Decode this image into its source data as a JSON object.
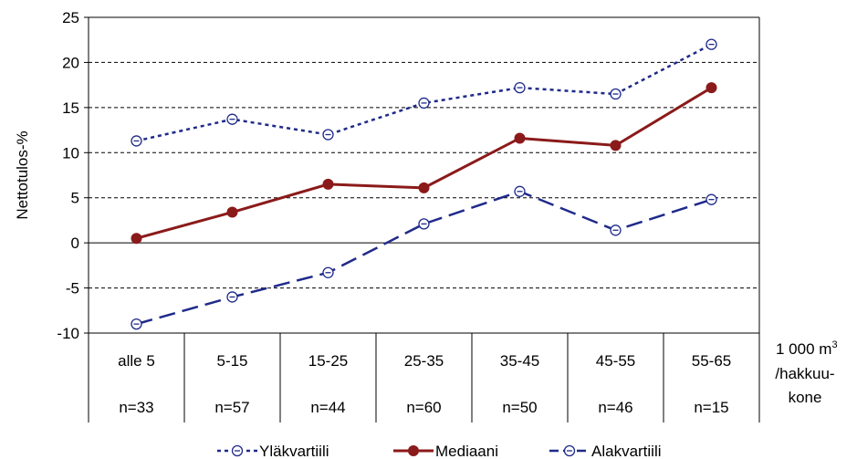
{
  "chart_data": {
    "type": "line",
    "ylabel": "Nettotulos-%",
    "xlabel_lines": [
      "1 000 m",
      "/hakkuu-",
      "kone"
    ],
    "xlabel_superscript": "3",
    "ylim": [
      -10,
      25
    ],
    "y_ticks": [
      25,
      20,
      15,
      10,
      5,
      0,
      -5,
      -10
    ],
    "grid": "horizontal-dashed",
    "legend_position": "bottom",
    "categories": [
      "alle 5",
      "5-15",
      "15-25",
      "25-35",
      "35-45",
      "45-55",
      "55-65"
    ],
    "counts": [
      "n=33",
      "n=57",
      "n=44",
      "n=60",
      "n=50",
      "n=46",
      "n=15"
    ],
    "series": [
      {
        "name": "Yläkvartiili",
        "color": "#1f2a8a",
        "line": "dotted",
        "marker": "open-circle",
        "values": [
          11.3,
          13.7,
          12.0,
          15.5,
          17.2,
          16.5,
          22.0
        ]
      },
      {
        "name": "Mediaani",
        "color": "#8b1a1a",
        "line": "solid",
        "marker": "filled-circle",
        "values": [
          0.5,
          3.4,
          6.5,
          6.1,
          11.6,
          10.8,
          17.2
        ]
      },
      {
        "name": "Alakvartiili",
        "color": "#1f2a8a",
        "line": "dashed",
        "marker": "open-circle",
        "values": [
          -9.0,
          -6.0,
          -3.3,
          2.1,
          5.7,
          1.4,
          4.8
        ]
      }
    ]
  }
}
